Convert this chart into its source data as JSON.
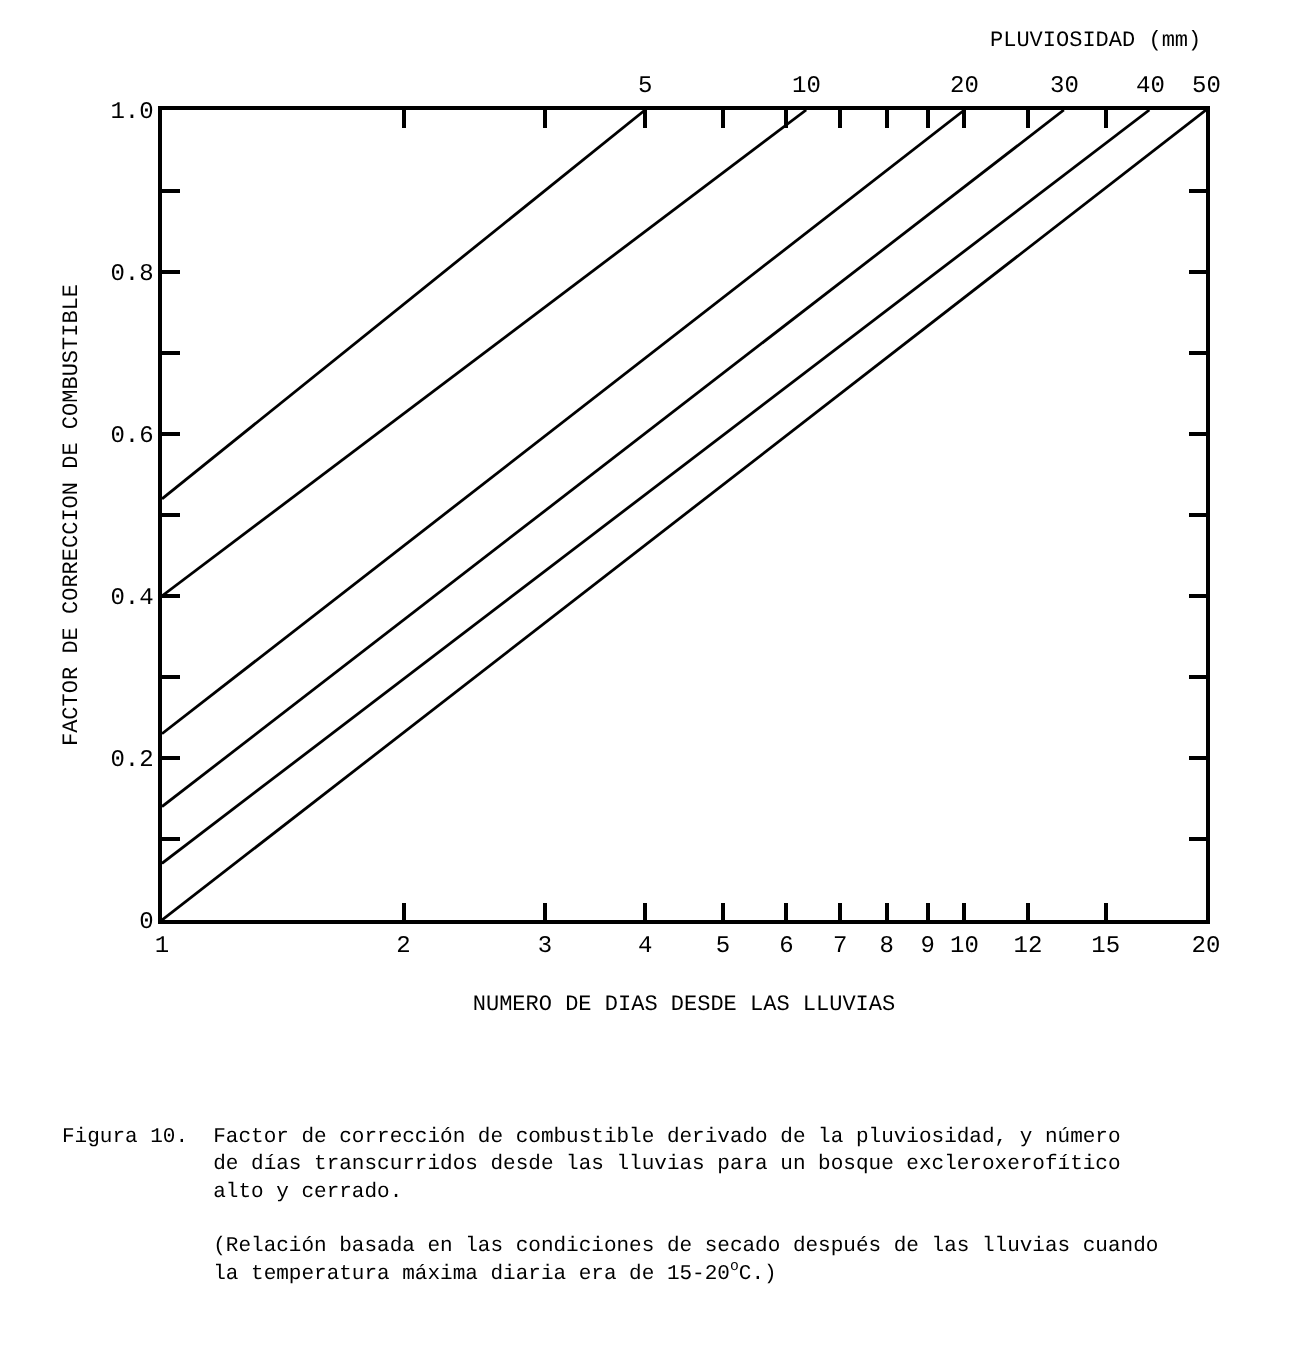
{
  "chart_data": {
    "type": "line",
    "xlabel": "NUMERO DE DIAS DESDE LAS LLUVIAS",
    "ylabel": "FACTOR DE CORRECCION DE COMBUSTIBLE",
    "log": "x",
    "xlim": [
      1,
      20
    ],
    "xticks": [
      1,
      2,
      3,
      4,
      5,
      6,
      7,
      8,
      9,
      10,
      12,
      15,
      20
    ],
    "ylim": [
      0,
      1.0
    ],
    "yticks": [
      {
        "value": 0,
        "label": "0"
      },
      {
        "value": 0.1,
        "label": null
      },
      {
        "value": 0.2,
        "label": "0.2"
      },
      {
        "value": 0.3,
        "label": null
      },
      {
        "value": 0.4,
        "label": "0.4"
      },
      {
        "value": 0.5,
        "label": null
      },
      {
        "value": 0.6,
        "label": "0.6"
      },
      {
        "value": 0.7,
        "label": null
      },
      {
        "value": 0.8,
        "label": "0.8"
      },
      {
        "value": 0.9,
        "label": null
      },
      {
        "value": 1.0,
        "label": "1.0"
      }
    ],
    "legend": false,
    "marker": "none",
    "line_style": "solid",
    "series": [
      {
        "name": "5",
        "color": "#000000",
        "x": [
          1,
          4
        ],
        "values": [
          0.52,
          1.0
        ]
      },
      {
        "name": "10",
        "color": "#000000",
        "x": [
          1,
          6.35
        ],
        "values": [
          0.4,
          1.0
        ]
      },
      {
        "name": "20",
        "color": "#000000",
        "x": [
          1,
          10
        ],
        "values": [
          0.23,
          1.0
        ]
      },
      {
        "name": "30",
        "color": "#000000",
        "x": [
          1,
          13.3
        ],
        "values": [
          0.14,
          1.0
        ]
      },
      {
        "name": "40",
        "color": "#000000",
        "x": [
          1,
          17
        ],
        "values": [
          0.07,
          1.0
        ]
      },
      {
        "name": "50",
        "color": "#000000",
        "x": [
          1,
          20
        ],
        "values": [
          0,
          1.0
        ]
      }
    ],
    "annotations": [
      "PLUVIOSIDAD (mm)",
      "Figura 10.  Factor de corrección de combustible derivado de la pluviosidad, y número\n            de días transcurridos desde las lluvias para un bosque excleroxerofítico\n            alto y cerrado.\n\n            (Relación basada en las condiciones de secado después de las lluvias cuando\n            la temperatura máxima diaria era de 15-20$^{o}$C.)"
    ]
  }
}
